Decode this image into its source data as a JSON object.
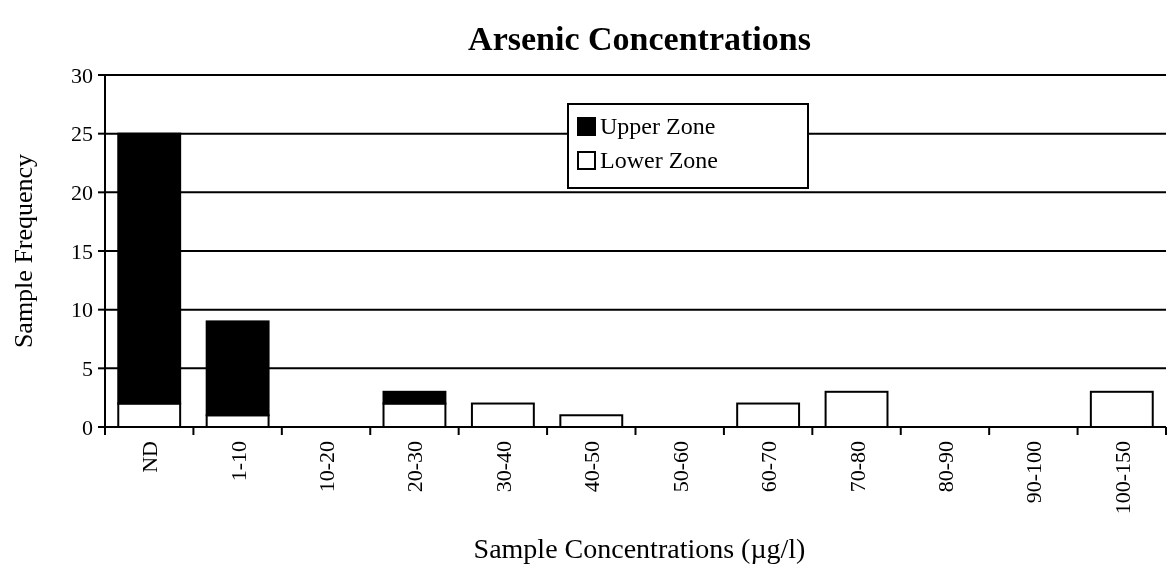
{
  "chart_data": {
    "type": "bar",
    "title": "Arsenic Concentrations",
    "xlabel": "Sample Concentrations (µg/l)",
    "ylabel": "Sample Frequency",
    "categories": [
      "ND",
      "1-10",
      "10-20",
      "20-30",
      "30-40",
      "40-50",
      "50-60",
      "60-70",
      "70-80",
      "80-90",
      "90-100",
      "100-150"
    ],
    "stacked": true,
    "series": [
      {
        "name": "Lower Zone",
        "color": "#ffffff",
        "values": [
          2,
          1,
          0,
          2,
          2,
          1,
          0,
          2,
          3,
          0,
          0,
          3
        ]
      },
      {
        "name": "Upper Zone",
        "color": "#000000",
        "values": [
          23,
          8,
          0,
          1,
          0,
          0,
          0,
          0,
          0,
          0,
          0,
          0
        ]
      }
    ],
    "ylim": [
      0,
      30
    ],
    "yticks": [
      0,
      5,
      10,
      15,
      20,
      25,
      30
    ],
    "grid": "y",
    "legend": "top right"
  }
}
